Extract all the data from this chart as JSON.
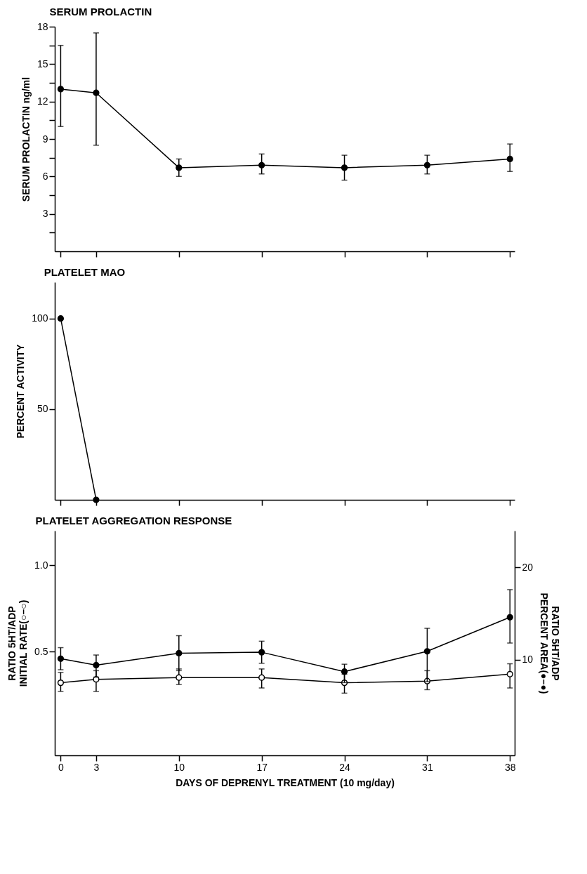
{
  "chart_data": [
    {
      "type": "line",
      "title": "SERUM PROLACTIN",
      "ylabel": "SERUM PROLACTIN ng/ml",
      "x": [
        0,
        3,
        10,
        17,
        24,
        31,
        38
      ],
      "xlim": [
        -0.5,
        38.4
      ],
      "xticks": [
        0,
        3,
        10,
        17,
        24,
        31,
        38
      ],
      "ylim": [
        0,
        18
      ],
      "yticks": [
        {
          "value": 1.5,
          "label": null
        },
        3,
        {
          "value": 4.5,
          "label": null
        },
        6,
        {
          "value": 7.5,
          "label": null
        },
        9,
        {
          "value": 10.5,
          "label": null
        },
        12,
        {
          "value": 13.5,
          "label": null
        },
        15,
        {
          "value": 16.5,
          "label": null
        },
        18
      ],
      "tick_labels": "y",
      "marker": "circle",
      "line_style": "solid",
      "series": [
        {
          "color": "#000000",
          "values": [
            13.0,
            12.7,
            6.7,
            6.9,
            6.7,
            6.9,
            7.4
          ],
          "errors": [
            [
              10.0,
              16.5
            ],
            [
              8.5,
              17.5
            ],
            [
              6.0,
              7.4
            ],
            [
              6.2,
              7.8
            ],
            [
              5.7,
              7.7
            ],
            [
              6.2,
              7.7
            ],
            [
              6.4,
              8.6
            ]
          ]
        }
      ]
    },
    {
      "type": "line",
      "title": "PLATELET MAO",
      "ylabel": "PERCENT ACTIVITY",
      "x": [
        0,
        3
      ],
      "xlim": [
        -0.5,
        38.4
      ],
      "xticks": [
        0,
        3,
        10,
        17,
        24,
        31,
        38
      ],
      "ylim": [
        0,
        120
      ],
      "yticks": [
        50,
        100
      ],
      "tick_labels": "y",
      "marker": "circle",
      "line_style": "solid",
      "series": [
        {
          "color": "#000000",
          "values": [
            100,
            0
          ]
        }
      ]
    },
    {
      "type": "line",
      "title": "PLATELET AGGREGATION RESPONSE",
      "xlabel": "DAYS OF DEPRENYL TREATMENT (10 mg/day)",
      "ylabel": "RATIO 5HT/ADP\nINITIAL RATE(○–○)",
      "y2label": "RATIO 5HT/ADP\nPERCENT AREA(●–●)",
      "x": [
        0,
        3,
        10,
        17,
        24,
        31,
        38
      ],
      "xlim": [
        -0.5,
        38.4
      ],
      "xticks": [
        0,
        3,
        10,
        17,
        24,
        31,
        38
      ],
      "ylim": [
        -0.1,
        1.2
      ],
      "yticks": [
        0.5,
        {
          "value": 1,
          "label": "1.0"
        }
      ],
      "y2lim": [
        -0.4,
        24
      ],
      "y2ticks": [
        10,
        20
      ],
      "marker": "circle",
      "line_style": "solid",
      "series": [
        {
          "color": "#ffffff",
          "values": [
            0.32,
            0.34,
            0.35,
            0.35,
            0.32,
            0.33,
            0.37
          ],
          "errors": [
            [
              0.27,
              0.38
            ],
            [
              0.27,
              0.39
            ],
            [
              0.31,
              0.4
            ],
            [
              0.29,
              0.4
            ],
            [
              0.26,
              0.37
            ],
            [
              0.28,
              0.39
            ],
            [
              0.29,
              0.43
            ]
          ]
        },
        {
          "color": "#000000",
          "axis": "y2",
          "values": [
            10.1,
            9.4,
            10.7,
            10.8,
            8.7,
            10.9,
            14.6
          ],
          "errors": [
            [
              8.9,
              11.3
            ],
            [
              8.1,
              10.5
            ],
            [
              8.8,
              12.6
            ],
            [
              9.6,
              12.0
            ],
            [
              7.5,
              9.5
            ],
            [
              7.6,
              13.4
            ],
            [
              11.8,
              17.6
            ]
          ]
        }
      ]
    }
  ]
}
